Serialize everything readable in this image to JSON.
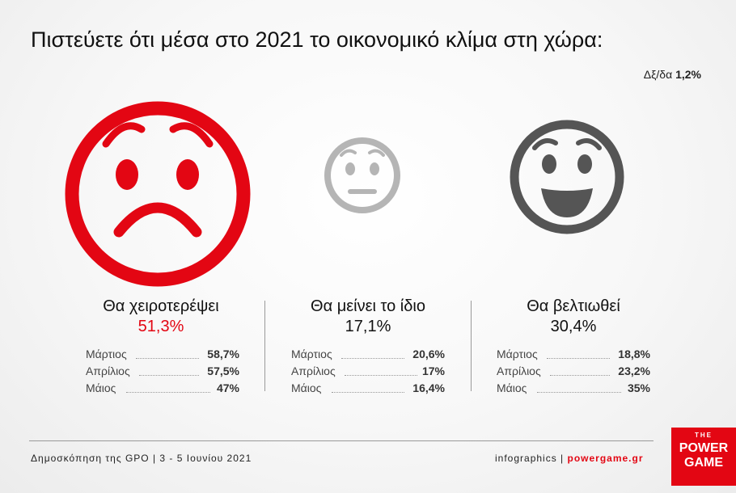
{
  "title": "Πιστεύετε ότι μέσα στο 2021 το οικονομικό κλίμα στη χώρα:",
  "dkna": {
    "label": "Δξ/δα",
    "value": "1,2%"
  },
  "chart_data": {
    "type": "table",
    "title": "Πιστεύετε ότι μέσα στο 2021 το οικονομικό κλίμα στη χώρα:",
    "categories": [
      "Θα χειροτερέψει",
      "Θα μείνει το ίδιο",
      "Θα βελτιωθεί"
    ],
    "values": [
      51.3,
      17.1,
      30.4
    ],
    "value_labels": [
      "51,3%",
      "17,1%",
      "30,4%"
    ],
    "history": [
      {
        "category": "Θα χειροτερέψει",
        "rows": [
          {
            "month": "Μάρτιος",
            "value": "58,7%"
          },
          {
            "month": "Απρίλιος",
            "value": "57,5%"
          },
          {
            "month": "Μάιος",
            "value": "47%"
          }
        ]
      },
      {
        "category": "Θα μείνει το ίδιο",
        "rows": [
          {
            "month": "Μάρτιος",
            "value": "20,6%"
          },
          {
            "month": "Απρίλιος",
            "value": "17%"
          },
          {
            "month": "Μάιος",
            "value": "16,4%"
          }
        ]
      },
      {
        "category": "Θα βελτιωθεί",
        "rows": [
          {
            "month": "Μάρτιος",
            "value": "18,8%"
          },
          {
            "month": "Απρίλιος",
            "value": "23,2%"
          },
          {
            "month": "Μάιος",
            "value": "35%"
          }
        ]
      }
    ],
    "dont_know": "1,2%"
  },
  "colors": {
    "worse": "#e30613",
    "same": "#b5b5b5",
    "better": "#555555"
  },
  "icons": [
    "sad-face-icon",
    "neutral-face-icon",
    "happy-face-icon"
  ],
  "footer": {
    "source": "Δημοσκόπηση της GPO | 3 - 5 Ιουνίου 2021",
    "credit": "infographics |",
    "site": "powergame.gr"
  },
  "logo": {
    "line1": "THE",
    "line2": "POWER",
    "line3": "GAME"
  }
}
